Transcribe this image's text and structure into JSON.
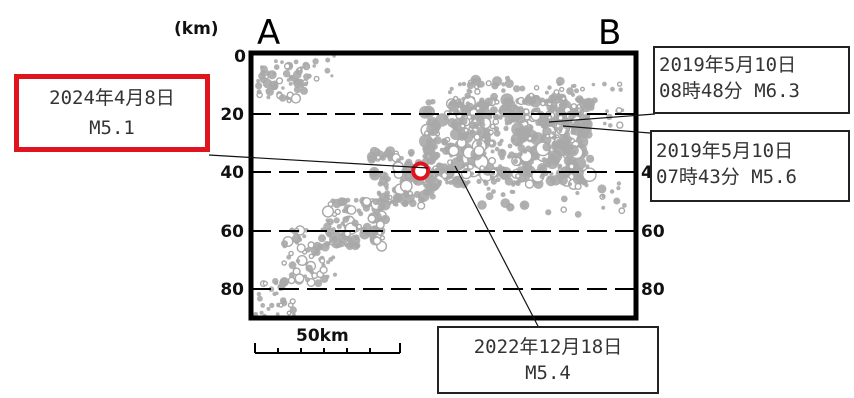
{
  "section": {
    "left_label": "A",
    "right_label": "B"
  },
  "axis": {
    "unit_label": "(km)",
    "y_ticks": [
      "0",
      "20",
      "40",
      "60",
      "80"
    ],
    "ylim": [
      0,
      90
    ]
  },
  "scale_bar": {
    "label": "50km"
  },
  "annotations": [
    {
      "line1": "2024年4月8日",
      "line2": "M5.1",
      "highlight_color": "#e0141e"
    },
    {
      "line1": "2019年5月10日",
      "line2": "08時48分 M6.3"
    },
    {
      "line1": "2019年5月10日",
      "line2": "07時43分 M5.6"
    },
    {
      "line1": "2022年12月18日",
      "line2": "M5.4"
    }
  ],
  "chart_data": {
    "type": "scatter",
    "xlabel": "",
    "ylabel": "(km)",
    "ylim": [
      0,
      90
    ],
    "xlim_km": [
      0,
      130
    ],
    "grid": "dashed horizontal at 20, 40, 60, 80",
    "colors": {
      "events": "#a8a8a8",
      "highlight": "#e0141e",
      "frame": "#000000"
    },
    "highlight_event": {
      "x_km": 57,
      "depth_km": 40,
      "label": "2024年4月8日 M5.1"
    },
    "clusters": [
      {
        "x_km": [
          1,
          18
        ],
        "depth_km": [
          2,
          16
        ],
        "count": 55,
        "r": [
          1.8,
          5
        ]
      },
      {
        "x_km": [
          14,
          30
        ],
        "depth_km": [
          0,
          10
        ],
        "count": 12,
        "r": [
          1.6,
          3.5
        ]
      },
      {
        "x_km": [
          58,
          115
        ],
        "depth_km": [
          15,
          45
        ],
        "count": 480,
        "r": [
          2,
          7
        ]
      },
      {
        "x_km": [
          66,
          110
        ],
        "depth_km": [
          8,
          30
        ],
        "count": 110,
        "r": [
          2,
          6
        ]
      },
      {
        "x_km": [
          100,
          127
        ],
        "depth_km": [
          10,
          28
        ],
        "count": 45,
        "r": [
          1.8,
          4
        ]
      },
      {
        "x_km": [
          78,
          127
        ],
        "depth_km": [
          40,
          55
        ],
        "count": 40,
        "r": [
          2,
          5
        ]
      },
      {
        "x_km": [
          40,
          62
        ],
        "depth_km": [
          33,
          52
        ],
        "count": 110,
        "r": [
          2,
          6
        ]
      },
      {
        "x_km": [
          25,
          45
        ],
        "depth_km": [
          50,
          66
        ],
        "count": 90,
        "r": [
          2,
          6
        ]
      },
      {
        "x_km": [
          10,
          28
        ],
        "depth_km": [
          60,
          80
        ],
        "count": 70,
        "r": [
          2,
          5
        ]
      },
      {
        "x_km": [
          0,
          14
        ],
        "depth_km": [
          78,
          90
        ],
        "count": 30,
        "r": [
          1.8,
          4
        ]
      }
    ]
  }
}
